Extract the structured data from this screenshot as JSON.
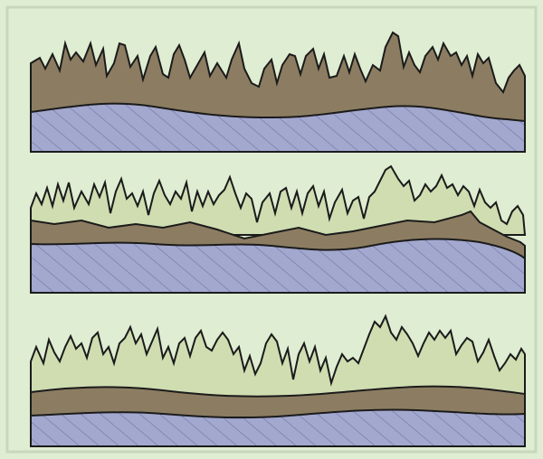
{
  "colors": {
    "background": "#dfedd2",
    "border": "#c9d8bd",
    "dark_layer": "#8c7d62",
    "light_layer": "#cfddb1",
    "substrate": "#a3a8cf",
    "hatch": "#6f74a8",
    "outline": "#1b1b1b"
  },
  "panels": [
    {
      "name": "top-panel",
      "layers": [
        "dark-layer",
        "substrate"
      ]
    },
    {
      "name": "middle-panel",
      "layers": [
        "light-layer",
        "dark-layer",
        "substrate"
      ]
    },
    {
      "name": "bottom-panel",
      "layers": [
        "light-layer",
        "dark-layer",
        "substrate"
      ]
    }
  ]
}
